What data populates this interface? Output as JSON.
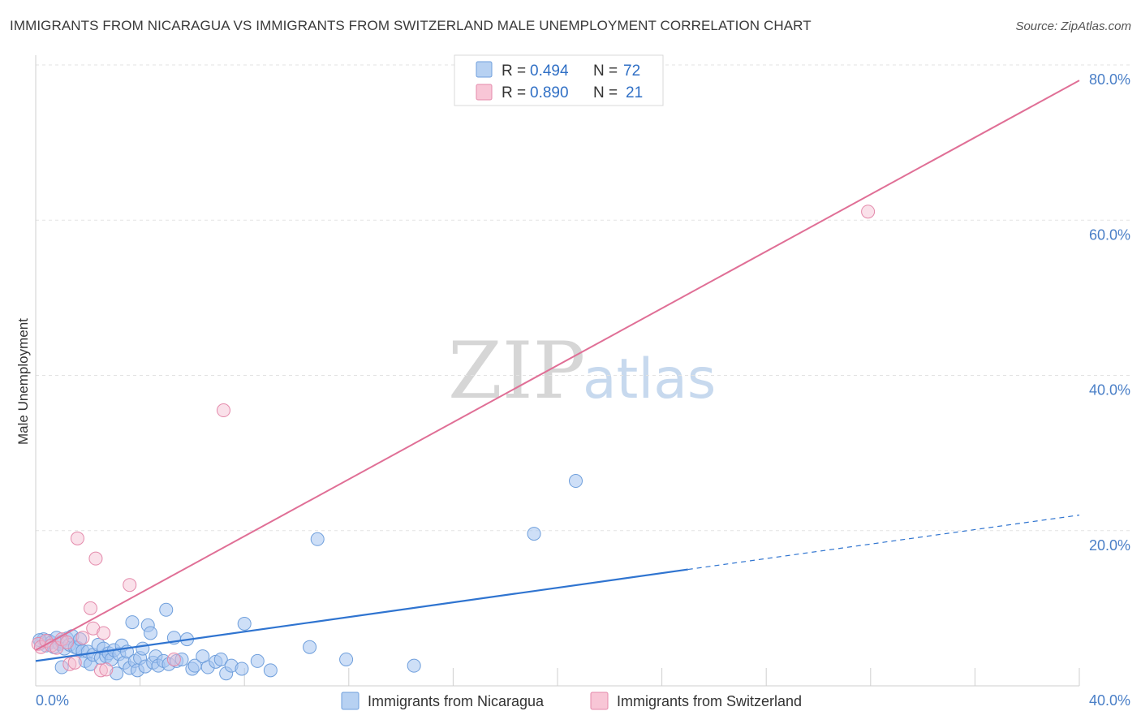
{
  "title": "IMMIGRANTS FROM NICARAGUA VS IMMIGRANTS FROM SWITZERLAND MALE UNEMPLOYMENT CORRELATION CHART",
  "source": "Source: ZipAtlas.com",
  "watermark": {
    "zip": "ZIP",
    "atlas": "atlas"
  },
  "legend": {
    "rows": [
      {
        "r_label": "R =",
        "r_value": "0.494",
        "n_label": "N =",
        "n_value": "72"
      },
      {
        "r_label": "R =",
        "r_value": "0.890",
        "n_label": "N =",
        "n_value": "21"
      }
    ]
  },
  "chart_data": {
    "type": "scatter",
    "title": "IMMIGRANTS FROM NICARAGUA VS IMMIGRANTS FROM SWITZERLAND MALE UNEMPLOYMENT CORRELATION CHART",
    "xlabel": "",
    "ylabel": "Male Unemployment",
    "xlim": [
      0,
      40
    ],
    "ylim": [
      0,
      80
    ],
    "x_tick_labels": [
      "0.0%",
      "40.0%"
    ],
    "y_ticks": [
      20,
      40,
      60,
      80
    ],
    "y_tick_labels": [
      "20.0%",
      "40.0%",
      "60.0%",
      "80.0%"
    ],
    "grid": true,
    "legend_position": "top-center",
    "colors": {
      "nicaragua": "#4a87d6",
      "nicaragua_fill": "#a9c8f0",
      "switzerland": "#e06f96",
      "switzerland_fill": "#f5bdd0"
    },
    "series": [
      {
        "name": "Immigrants from Nicaragua",
        "r": 0.494,
        "n": 72,
        "trend": {
          "x0": 0,
          "y0": 3.2,
          "x1": 25,
          "y1": 15.0,
          "dash_x1": 40,
          "dash_y1": 22.0
        },
        "points": [
          [
            0.2,
            5.5
          ],
          [
            0.3,
            6.0
          ],
          [
            0.4,
            5.2
          ],
          [
            0.5,
            5.8
          ],
          [
            0.6,
            5.6
          ],
          [
            0.7,
            5.0
          ],
          [
            0.8,
            6.2
          ],
          [
            0.9,
            5.4
          ],
          [
            1.0,
            5.7
          ],
          [
            1.1,
            4.8
          ],
          [
            1.2,
            6.1
          ],
          [
            1.3,
            5.3
          ],
          [
            1.4,
            6.4
          ],
          [
            1.5,
            5.0
          ],
          [
            1.6,
            4.9
          ],
          [
            1.7,
            6.0
          ],
          [
            1.8,
            4.5
          ],
          [
            1.9,
            3.2
          ],
          [
            2.0,
            4.4
          ],
          [
            2.1,
            2.8
          ],
          [
            2.2,
            4.0
          ],
          [
            2.4,
            5.3
          ],
          [
            2.5,
            3.6
          ],
          [
            2.6,
            4.8
          ],
          [
            2.7,
            3.8
          ],
          [
            2.8,
            4.2
          ],
          [
            2.9,
            3.4
          ],
          [
            3.0,
            4.6
          ],
          [
            3.1,
            1.6
          ],
          [
            3.2,
            4.1
          ],
          [
            3.3,
            5.2
          ],
          [
            3.4,
            3.0
          ],
          [
            3.5,
            4.4
          ],
          [
            3.6,
            2.3
          ],
          [
            3.7,
            8.2
          ],
          [
            3.8,
            3.2
          ],
          [
            3.9,
            2.0
          ],
          [
            4.0,
            3.6
          ],
          [
            4.1,
            4.8
          ],
          [
            4.2,
            2.5
          ],
          [
            4.3,
            7.8
          ],
          [
            4.4,
            6.8
          ],
          [
            4.5,
            3.0
          ],
          [
            4.6,
            3.8
          ],
          [
            4.7,
            2.6
          ],
          [
            4.9,
            3.2
          ],
          [
            5.0,
            9.8
          ],
          [
            5.1,
            2.8
          ],
          [
            5.3,
            6.2
          ],
          [
            5.4,
            3.2
          ],
          [
            5.6,
            3.4
          ],
          [
            5.8,
            6.0
          ],
          [
            6.0,
            2.2
          ],
          [
            6.1,
            2.6
          ],
          [
            6.4,
            3.8
          ],
          [
            6.6,
            2.4
          ],
          [
            6.9,
            3.1
          ],
          [
            7.1,
            3.4
          ],
          [
            7.3,
            1.6
          ],
          [
            7.5,
            2.6
          ],
          [
            7.9,
            2.2
          ],
          [
            8.0,
            8.0
          ],
          [
            8.5,
            3.2
          ],
          [
            9.0,
            2.0
          ],
          [
            10.5,
            5.0
          ],
          [
            10.8,
            18.9
          ],
          [
            11.9,
            3.4
          ],
          [
            14.5,
            2.6
          ],
          [
            19.1,
            19.6
          ],
          [
            20.7,
            26.4
          ],
          [
            1.0,
            2.4
          ],
          [
            0.15,
            5.9
          ]
        ]
      },
      {
        "name": "Immigrants from Switzerland",
        "r": 0.89,
        "n": 21,
        "trend": {
          "x0": 0,
          "y0": 4.6,
          "x1": 40,
          "y1": 78.0
        },
        "points": [
          [
            0.1,
            5.4
          ],
          [
            0.2,
            5.0
          ],
          [
            0.4,
            5.8
          ],
          [
            0.6,
            5.2
          ],
          [
            0.8,
            4.9
          ],
          [
            1.0,
            6.0
          ],
          [
            1.2,
            5.6
          ],
          [
            1.3,
            2.8
          ],
          [
            1.5,
            3.0
          ],
          [
            1.6,
            19.0
          ],
          [
            1.8,
            6.2
          ],
          [
            2.1,
            10.0
          ],
          [
            2.2,
            7.4
          ],
          [
            2.3,
            16.4
          ],
          [
            2.5,
            2.0
          ],
          [
            2.6,
            6.8
          ],
          [
            2.7,
            2.1
          ],
          [
            3.6,
            13.0
          ],
          [
            5.3,
            3.4
          ],
          [
            7.2,
            35.5
          ],
          [
            31.9,
            61.1
          ]
        ]
      }
    ]
  },
  "bottom_legend": [
    "Immigrants from Nicaragua",
    "Immigrants from Switzerland"
  ]
}
